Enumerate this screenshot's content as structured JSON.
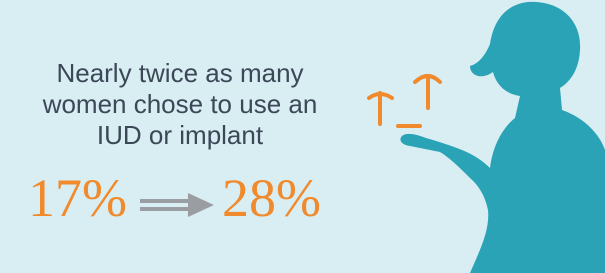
{
  "headline": [
    "Nearly twice as many",
    "women chose to use an",
    "IUD or implant"
  ],
  "stats": {
    "before": "17%",
    "after": "28%"
  }
}
